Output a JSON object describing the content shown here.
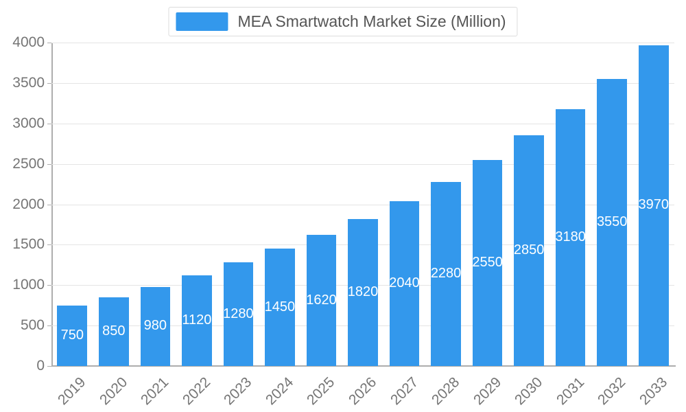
{
  "legend": {
    "label": "MEA Smartwatch Market Size (Million)"
  },
  "chart_data": {
    "type": "bar",
    "title": "MEA Smartwatch Market Size (Million)",
    "categories": [
      "2019",
      "2020",
      "2021",
      "2022",
      "2023",
      "2024",
      "2025",
      "2026",
      "2027",
      "2028",
      "2029",
      "2030",
      "2031",
      "2032",
      "2033"
    ],
    "values": [
      750,
      850,
      980,
      1120,
      1280,
      1450,
      1620,
      1820,
      2040,
      2280,
      2550,
      2850,
      3180,
      3550,
      3970
    ],
    "xlabel": "",
    "ylabel": "",
    "ylim": [
      0,
      4000
    ],
    "ytick_step": 500,
    "grid": true,
    "legend_position": "top",
    "bar_labels_visible": true,
    "bar_label_position": "center-inside"
  },
  "colors": {
    "bar": "#3398EC",
    "bar_label": "#ffffff",
    "axis_text": "#757575",
    "legend_text": "#555555",
    "gridline": "#e4e4e4",
    "axis_line": "#adadad"
  }
}
